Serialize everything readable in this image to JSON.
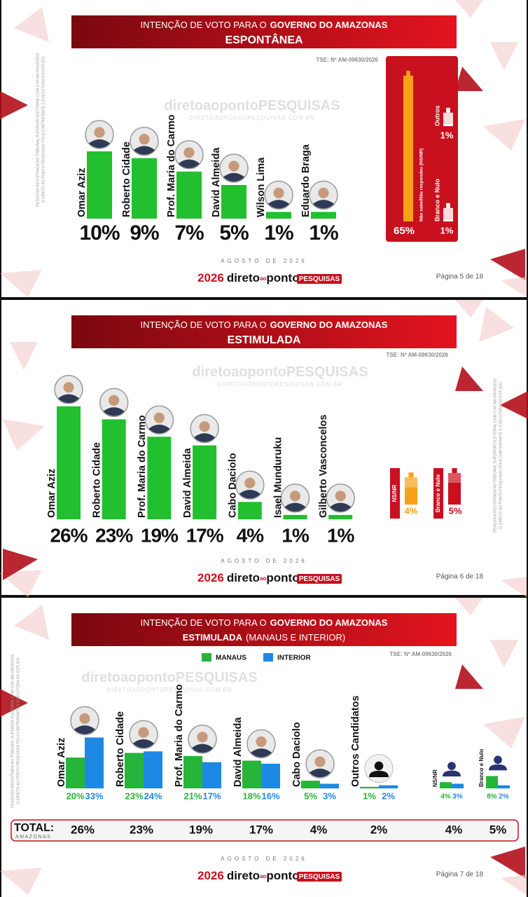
{
  "slides": [
    {
      "title_prefix": "INTENÇÃO DE VOTO PARA O",
      "title_bold": "GOVERNO DO AMAZONAS",
      "subtitle": "ESPONTÂNEA",
      "tse": "TSE: Nº AM-09630/2026",
      "date": "AGOSTO DE 2026",
      "page": "Página 5 de 18"
    },
    {
      "title_prefix": "INTENÇÃO DE VOTO PARA O",
      "title_bold": "GOVERNO DO AMAZONAS",
      "subtitle": "ESTIMULADA",
      "tse": "TSE: Nº AM-09630/2026",
      "date": "AGOSTO DE 2026",
      "page": "Página 6 de 18"
    },
    {
      "title_prefix": "INTENÇÃO DE VOTO PARA O",
      "title_bold": "GOVERNO DO AMAZONAS",
      "subtitle": "ESTIMULADA",
      "subtitle_note": "(MANAUS E INTERIOR)",
      "tse": "TSE: Nº AM-09630/2026",
      "date": "AGOSTO DE 2026",
      "page": "Página 7 de 18"
    }
  ],
  "legal": [
    "PESQUISA REGISTRADA NO TRIBUNAL SUPERIOR ELEITORAL COM O Nº AM-09630/2026",
    "O DIRETO AO PONTO PESQUISAS FOI A CONTRATANTE E EXECUTORA DO ESTUDO"
  ],
  "brand": {
    "year": "2026",
    "name_1": "direto",
    "name_2": "ao",
    "name_3": "ponto",
    "suffix": "PESQUISAS",
    "site": "DIRETOAOPONTOPESQUISAS.COM.BR"
  },
  "chart_data": [
    {
      "type": "bar",
      "categories": [
        "Omar Aziz",
        "Roberto Cidade",
        "Prof. Maria do Carmo",
        "David Almeida",
        "Wilson Lima",
        "Eduardo Braga"
      ],
      "values": [
        10,
        9,
        7,
        5,
        1,
        1
      ],
      "value_labels": [
        "10%",
        "9%",
        "7%",
        "5%",
        "1%",
        "1%"
      ],
      "color": "#22bf2e",
      "side_categories": [
        "Não sabe/Não respondeu (NS/NR)",
        "Outros",
        "Branco e Nulo"
      ],
      "side_values": [
        65,
        1,
        1
      ],
      "side_value_labels": [
        "65%",
        "1%",
        "1%"
      ],
      "side_colors": [
        "#f7a11a",
        "#ffffff",
        "#ffffff"
      ]
    },
    {
      "type": "bar",
      "categories": [
        "Omar Aziz",
        "Roberto Cidade",
        "Prof. Maria do Carmo",
        "David Almeida",
        "Cabo Daciolo",
        "Isael Munduruku",
        "Gilberto Vasconcelos"
      ],
      "values": [
        26,
        23,
        19,
        17,
        4,
        1,
        1
      ],
      "value_labels": [
        "26%",
        "23%",
        "19%",
        "17%",
        "4%",
        "1%",
        "1%"
      ],
      "color": "#22bf2e",
      "side_categories": [
        "NS/NR",
        "Branco e Nulo"
      ],
      "side_values": [
        4,
        5
      ],
      "side_value_labels": [
        "4%",
        "5%"
      ],
      "side_colors": [
        "#f7a11a",
        "#c8101e"
      ]
    },
    {
      "type": "grouped_bar",
      "categories": [
        "Omar Aziz",
        "Roberto Cidade",
        "Prof. Maria do Carmo",
        "David Almeida",
        "Cabo Daciolo",
        "Outros Candidatos",
        "NS/NR",
        "Branco e Nulo"
      ],
      "series": [
        {
          "name": "MANAUS",
          "color": "#27b43a",
          "values": [
            20,
            23,
            21,
            18,
            5,
            1,
            4,
            8
          ],
          "value_labels": [
            "20%",
            "23%",
            "21%",
            "18%",
            "5%",
            "1%",
            "4%",
            "8%"
          ]
        },
        {
          "name": "INTERIOR",
          "color": "#1e88e5",
          "values": [
            33,
            24,
            17,
            16,
            3,
            2,
            3,
            2
          ],
          "value_labels": [
            "33%",
            "24%",
            "17%",
            "16%",
            "3%",
            "2%",
            "3%",
            "2%"
          ]
        }
      ],
      "total_label": "TOTAL:",
      "total_sublabel": "AMAZONAS",
      "totals": [
        26,
        23,
        19,
        17,
        4,
        2,
        4,
        5
      ],
      "total_labels": [
        "26%",
        "23%",
        "19%",
        "17%",
        "4%",
        "2%",
        "4%",
        "5%"
      ]
    }
  ]
}
